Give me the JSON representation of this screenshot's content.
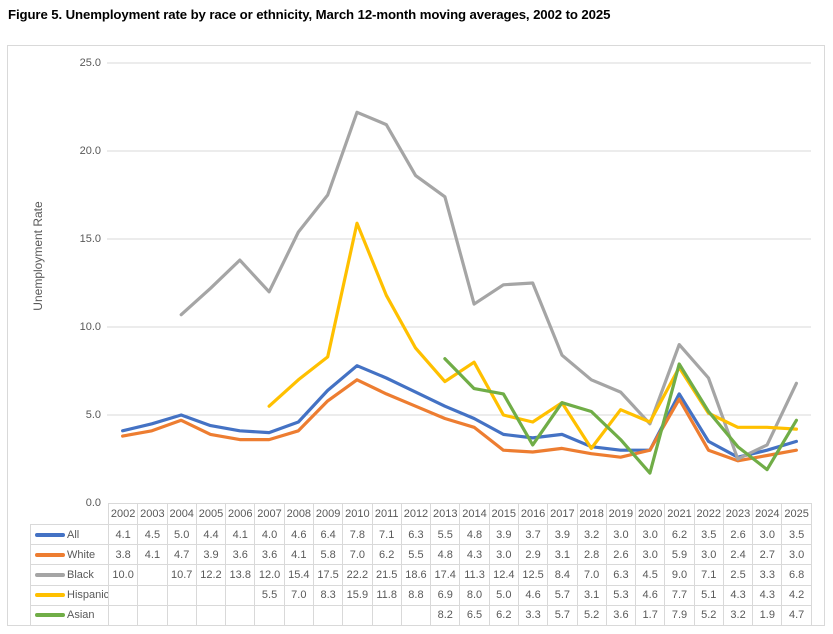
{
  "title": "Figure 5. Unemployment rate by race or ethnicity, March 12-month moving averages, 2002 to 2025",
  "chart_data": {
    "type": "line",
    "title": "Figure 5. Unemployment rate by race or ethnicity, March 12-month moving averages, 2002 to 2025",
    "xlabel": "",
    "ylabel": "Unemployment Rate",
    "ylim": [
      0,
      25
    ],
    "grid": true,
    "legend_position": "table-left",
    "y_ticks": [
      0,
      5,
      10,
      15,
      20,
      25
    ],
    "y_tick_labels": [
      "0.0",
      "5.0",
      "10.0",
      "15.0",
      "20.0",
      "25.0"
    ],
    "categories": [
      "2002",
      "2003",
      "2004",
      "2005",
      "2006",
      "2007",
      "2008",
      "2009",
      "2010",
      "2011",
      "2012",
      "2013",
      "2014",
      "2015",
      "2016",
      "2017",
      "2018",
      "2019",
      "2020",
      "2021",
      "2022",
      "2023",
      "2024",
      "2025"
    ],
    "series": [
      {
        "name": "All",
        "color": "#4472C4",
        "values": [
          4.1,
          4.5,
          5.0,
          4.4,
          4.1,
          4.0,
          4.6,
          6.4,
          7.8,
          7.1,
          6.3,
          5.5,
          4.8,
          3.9,
          3.7,
          3.9,
          3.2,
          3.0,
          3.0,
          6.2,
          3.5,
          2.6,
          3.0,
          3.5
        ]
      },
      {
        "name": "White",
        "color": "#ED7D31",
        "values": [
          3.8,
          4.1,
          4.7,
          3.9,
          3.6,
          3.6,
          4.1,
          5.8,
          7.0,
          6.2,
          5.5,
          4.8,
          4.3,
          3.0,
          2.9,
          3.1,
          2.8,
          2.6,
          3.0,
          5.9,
          3.0,
          2.4,
          2.7,
          3.0
        ]
      },
      {
        "name": "Black",
        "color": "#A5A5A5",
        "values": [
          10.0,
          null,
          10.7,
          12.2,
          13.8,
          12.0,
          15.4,
          17.5,
          22.2,
          21.5,
          18.6,
          17.4,
          11.3,
          12.4,
          12.5,
          8.4,
          7.0,
          6.3,
          4.5,
          9.0,
          7.1,
          2.5,
          3.3,
          6.8
        ]
      },
      {
        "name": "Hispanic",
        "color": "#FFC000",
        "values": [
          null,
          null,
          null,
          null,
          null,
          5.5,
          7.0,
          8.3,
          15.9,
          11.8,
          8.8,
          6.9,
          8.0,
          5.0,
          4.6,
          5.7,
          3.1,
          5.3,
          4.6,
          7.7,
          5.1,
          4.3,
          4.3,
          4.2
        ]
      },
      {
        "name": "Asian",
        "color": "#70AD47",
        "values": [
          null,
          null,
          null,
          null,
          null,
          null,
          null,
          null,
          null,
          null,
          null,
          8.2,
          6.5,
          6.2,
          3.3,
          5.7,
          5.2,
          3.6,
          1.7,
          7.9,
          5.2,
          3.2,
          1.9,
          4.7
        ]
      }
    ]
  }
}
